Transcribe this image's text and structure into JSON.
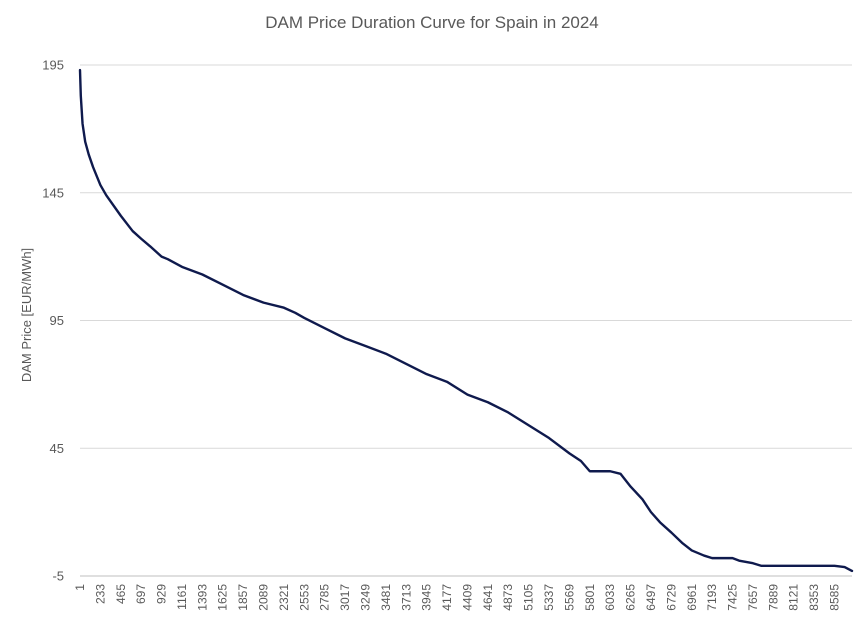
{
  "chart_data": {
    "type": "line",
    "title": "DAM Price Duration Curve for Spain in 2024",
    "xlabel": "",
    "ylabel": "DAM Price [EUR/MWh]",
    "xlim": [
      1,
      8784
    ],
    "ylim": [
      -5,
      195
    ],
    "y_ticks": [
      -5,
      45,
      95,
      145,
      195
    ],
    "y_tick_labels": [
      "-5",
      "45",
      "95",
      "145",
      "195"
    ],
    "x_tick_labels": [
      "1",
      "233",
      "465",
      "697",
      "929",
      "1161",
      "1393",
      "1625",
      "1857",
      "2089",
      "2321",
      "2553",
      "2785",
      "3017",
      "3249",
      "3481",
      "3713",
      "3945",
      "4177",
      "4409",
      "4641",
      "4873",
      "5105",
      "5337",
      "5569",
      "5801",
      "6033",
      "6265",
      "6497",
      "6729",
      "6961",
      "7193",
      "7425",
      "7657",
      "7889",
      "8121",
      "8353",
      "8585"
    ],
    "x_tick_values": [
      1,
      233,
      465,
      697,
      929,
      1161,
      1393,
      1625,
      1857,
      2089,
      2321,
      2553,
      2785,
      3017,
      3249,
      3481,
      3713,
      3945,
      4177,
      4409,
      4641,
      4873,
      5105,
      5337,
      5569,
      5801,
      6033,
      6265,
      6497,
      6729,
      6961,
      7193,
      7425,
      7657,
      7889,
      8121,
      8353,
      8585
    ],
    "grid": "horizontal",
    "series": [
      {
        "name": "DAM Price",
        "color": "#0f1a4d",
        "points": [
          [
            1,
            193
          ],
          [
            10,
            183
          ],
          [
            30,
            172
          ],
          [
            60,
            165
          ],
          [
            100,
            160
          ],
          [
            150,
            155
          ],
          [
            233,
            148
          ],
          [
            300,
            144
          ],
          [
            465,
            136
          ],
          [
            600,
            130
          ],
          [
            697,
            127
          ],
          [
            800,
            124
          ],
          [
            929,
            120
          ],
          [
            1000,
            119
          ],
          [
            1161,
            116
          ],
          [
            1393,
            113
          ],
          [
            1625,
            109
          ],
          [
            1857,
            105
          ],
          [
            2089,
            102
          ],
          [
            2321,
            100
          ],
          [
            2450,
            98
          ],
          [
            2553,
            96
          ],
          [
            2785,
            92
          ],
          [
            3017,
            88
          ],
          [
            3249,
            85
          ],
          [
            3481,
            82
          ],
          [
            3713,
            78
          ],
          [
            3945,
            74
          ],
          [
            4177,
            71
          ],
          [
            4409,
            66
          ],
          [
            4641,
            63
          ],
          [
            4873,
            59
          ],
          [
            5105,
            54
          ],
          [
            5337,
            49
          ],
          [
            5569,
            43
          ],
          [
            5700,
            40
          ],
          [
            5801,
            36
          ],
          [
            6033,
            36
          ],
          [
            6150,
            35
          ],
          [
            6265,
            30
          ],
          [
            6400,
            25
          ],
          [
            6497,
            20
          ],
          [
            6600,
            16
          ],
          [
            6729,
            12
          ],
          [
            6850,
            8
          ],
          [
            6961,
            5
          ],
          [
            7100,
            3
          ],
          [
            7193,
            2
          ],
          [
            7425,
            2
          ],
          [
            7500,
            1
          ],
          [
            7657,
            0
          ],
          [
            7750,
            -1
          ],
          [
            7889,
            -1
          ],
          [
            8121,
            -1
          ],
          [
            8353,
            -1
          ],
          [
            8585,
            -1
          ],
          [
            8700,
            -1.5
          ],
          [
            8784,
            -3
          ]
        ]
      }
    ]
  }
}
